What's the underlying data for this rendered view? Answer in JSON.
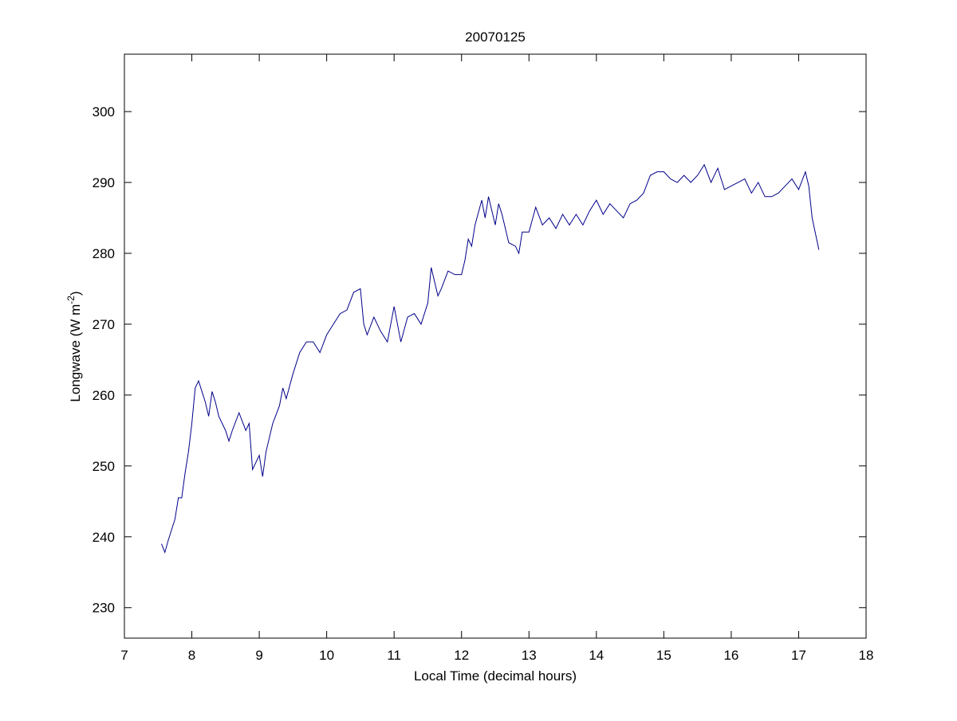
{
  "chart_data": {
    "type": "line",
    "title": "20070125",
    "xlabel": "Local Time (decimal hours)",
    "ylabel": {
      "text": "Longwave (W m",
      "superscript": "-2",
      "suffix": ")"
    },
    "xlim": [
      7,
      18
    ],
    "xticks": [
      7,
      8,
      9,
      10,
      11,
      12,
      13,
      14,
      15,
      16,
      17,
      18
    ],
    "ylim": [
      225.7,
      308.1
    ],
    "yticks": [
      230,
      240,
      250,
      260,
      270,
      280,
      290,
      300
    ],
    "grid": false,
    "series": [
      {
        "color": "#00008b",
        "x": [
          7.55,
          7.6,
          7.65,
          7.7,
          7.75,
          7.8,
          7.85,
          7.9,
          7.95,
          8.0,
          8.05,
          8.1,
          8.15,
          8.2,
          8.25,
          8.3,
          8.35,
          8.4,
          8.5,
          8.55,
          8.6,
          8.7,
          8.8,
          8.85,
          8.9,
          9.0,
          9.05,
          9.1,
          9.2,
          9.3,
          9.35,
          9.4,
          9.5,
          9.6,
          9.7,
          9.8,
          9.9,
          10.0,
          10.1,
          10.2,
          10.3,
          10.4,
          10.5,
          10.55,
          10.6,
          10.7,
          10.8,
          10.9,
          11.0,
          11.1,
          11.2,
          11.3,
          11.4,
          11.5,
          11.55,
          11.65,
          11.7,
          11.8,
          11.9,
          12.0,
          12.05,
          12.1,
          12.15,
          12.2,
          12.3,
          12.35,
          12.4,
          12.5,
          12.55,
          12.6,
          12.7,
          12.8,
          12.85,
          12.9,
          13.0,
          13.1,
          13.2,
          13.3,
          13.4,
          13.5,
          13.6,
          13.7,
          13.8,
          13.9,
          14.0,
          14.1,
          14.2,
          14.3,
          14.4,
          14.5,
          14.6,
          14.7,
          14.8,
          14.9,
          15.0,
          15.1,
          15.2,
          15.3,
          15.4,
          15.5,
          15.6,
          15.7,
          15.8,
          15.9,
          16.0,
          16.1,
          16.2,
          16.3,
          16.4,
          16.5,
          16.6,
          16.7,
          16.8,
          16.9,
          17.0,
          17.1,
          17.15,
          17.2,
          17.3
        ],
        "values": [
          239,
          237.8,
          239.5,
          241,
          242.5,
          245.5,
          245.5,
          249,
          252,
          256,
          261,
          262,
          260.5,
          259,
          257,
          260.5,
          259,
          257,
          255,
          253.5,
          255,
          257.5,
          255,
          256,
          249.5,
          251.5,
          248.5,
          252,
          256,
          258.5,
          261,
          259.5,
          263,
          266,
          267.5,
          267.5,
          266,
          268.5,
          270,
          271.5,
          272,
          274.5,
          275,
          270,
          268.5,
          271,
          269,
          267.5,
          272.5,
          267.5,
          271,
          271.5,
          270,
          273,
          278,
          274,
          275,
          277.5,
          277,
          277,
          279,
          282,
          281,
          284,
          287.5,
          285,
          288,
          284,
          287,
          285.5,
          281.5,
          281,
          280,
          283,
          283,
          286.5,
          284,
          285,
          283.5,
          285.5,
          284,
          285.5,
          284,
          286,
          287.5,
          285.5,
          287,
          286,
          285,
          287,
          287.5,
          288.5,
          291,
          291.5,
          291.5,
          290.5,
          290,
          291,
          290,
          291,
          292.5,
          290,
          292,
          289,
          289.5,
          290,
          290.5,
          288.5,
          290,
          288,
          288,
          288.5,
          289.5,
          290.5,
          289,
          291.5,
          289.5,
          285,
          280.5
        ]
      }
    ]
  }
}
